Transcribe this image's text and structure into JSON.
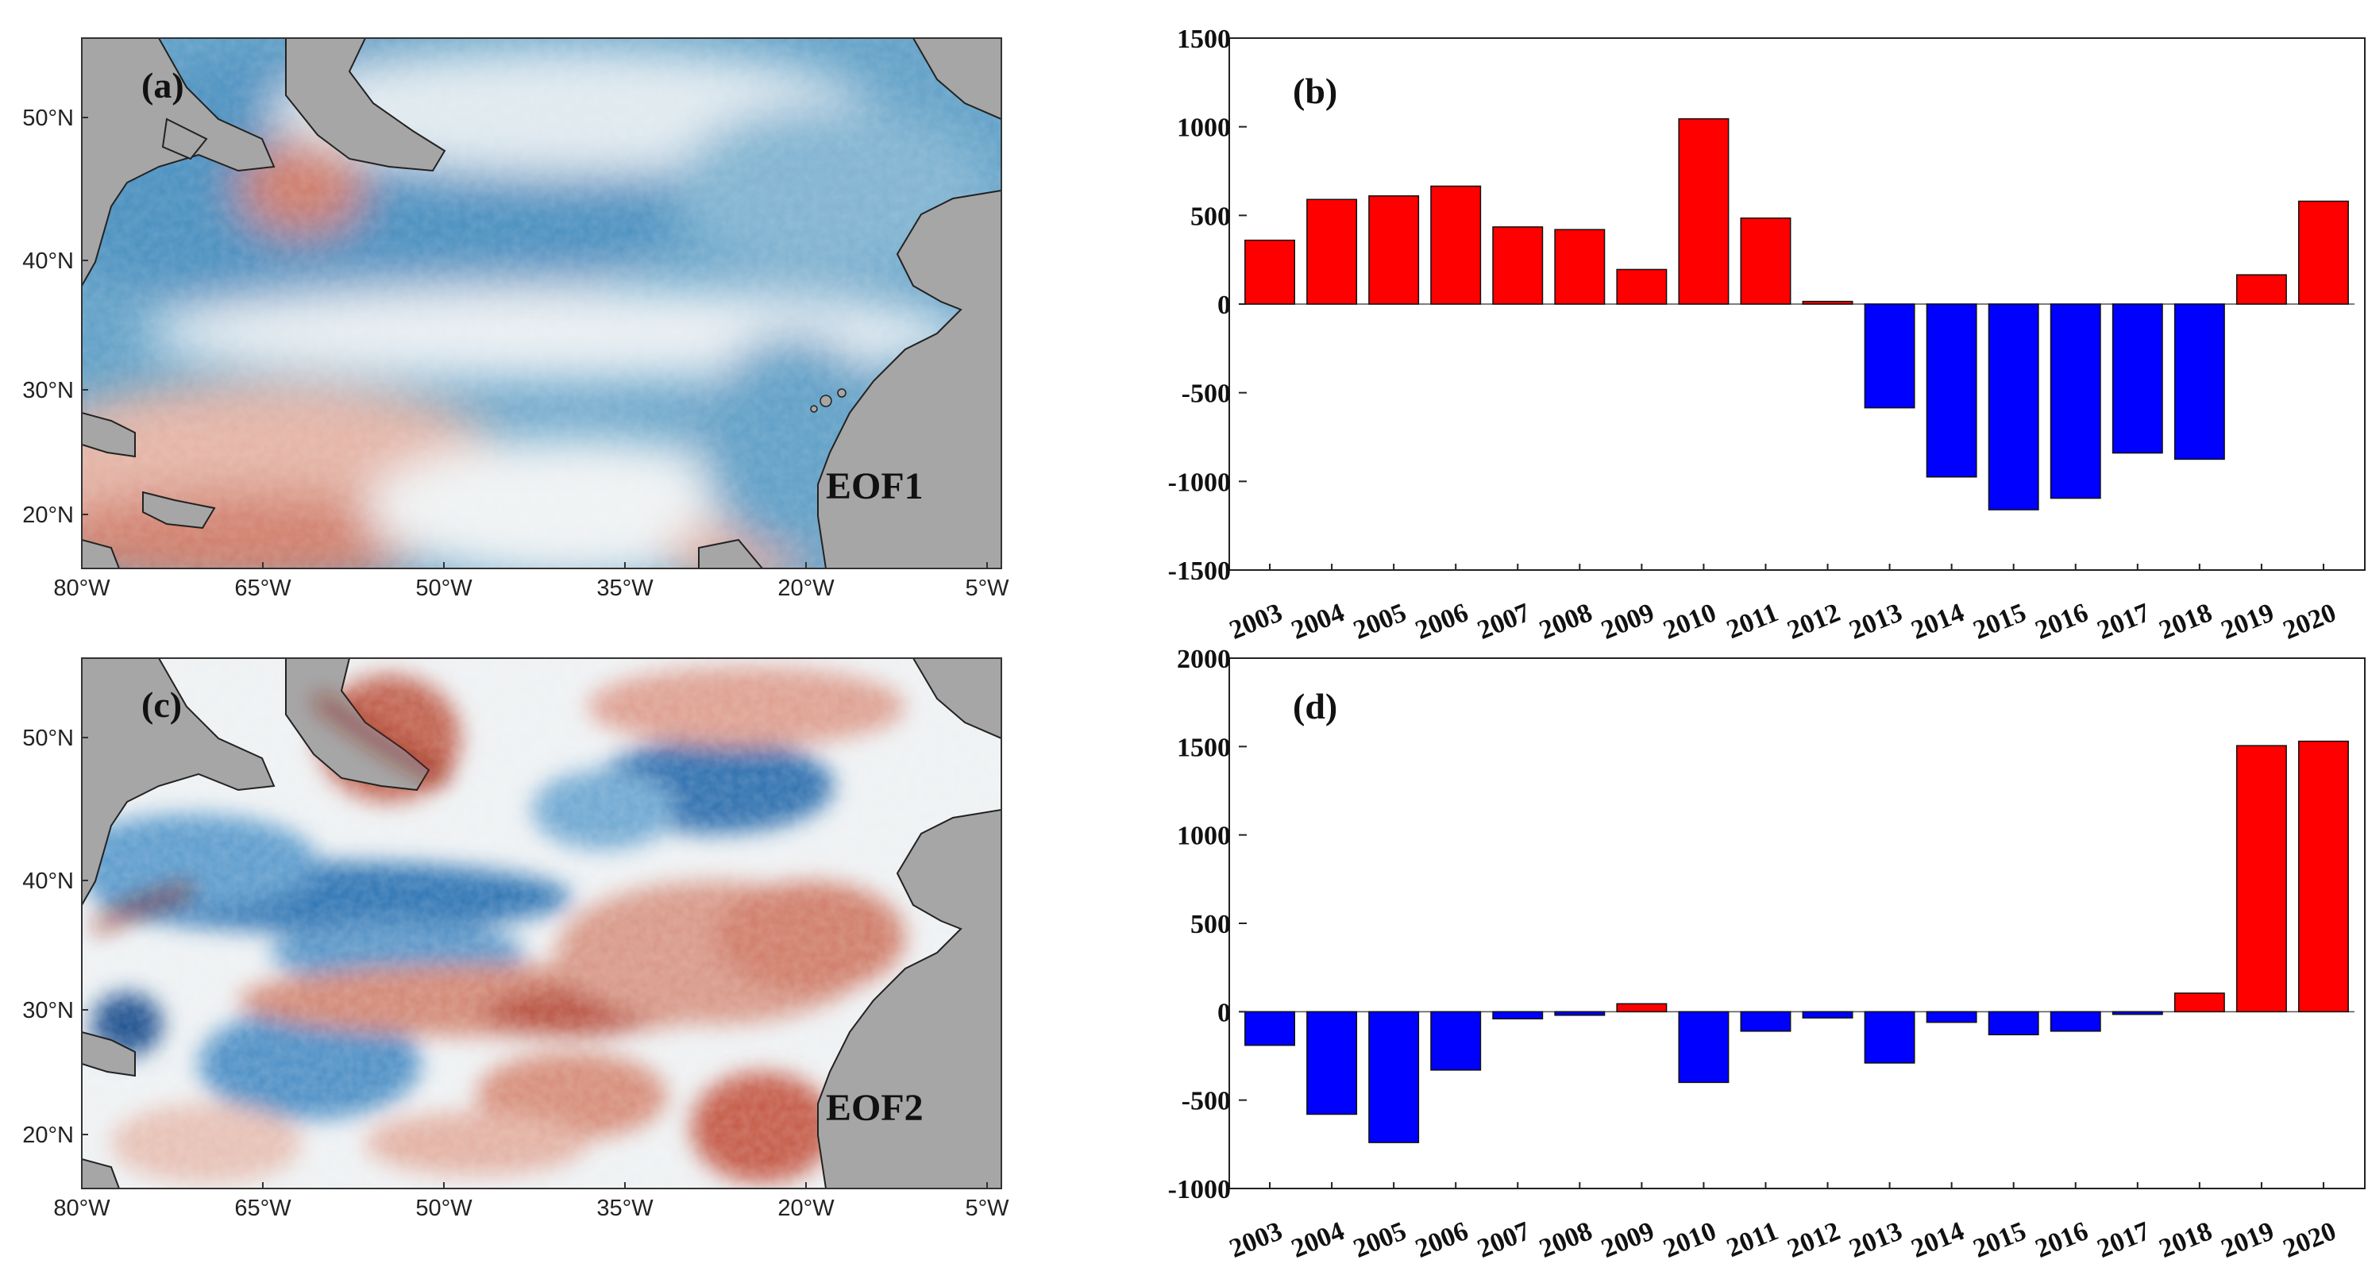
{
  "colors": {
    "positive": "#ff0000",
    "negative": "#0000ff",
    "land": "#a6a6a6",
    "warm": "#b93a2a",
    "cool": "#2d7fb5",
    "neutral": "#f2f2f2"
  },
  "maps": [
    {
      "panel_label": "(a)",
      "mode_label": "EOF1",
      "lon_ticks": [
        "80°W",
        "65°W",
        "50°W",
        "35°W",
        "20°W",
        "5°W"
      ],
      "lat_ticks": [
        "50°N",
        "40°N",
        "30°N",
        "20°N"
      ]
    },
    {
      "panel_label": "(c)",
      "mode_label": "EOF2",
      "lon_ticks": [
        "80°W",
        "65°W",
        "50°W",
        "35°W",
        "20°W",
        "5°W"
      ],
      "lat_ticks": [
        "50°N",
        "40°N",
        "30°N",
        "20°N"
      ]
    }
  ],
  "chart_data": [
    {
      "type": "bar",
      "panel_label": "(b)",
      "title": "",
      "xlabel": "",
      "ylabel": "",
      "ylim": [
        -1500,
        1500
      ],
      "yticks": [
        1500,
        1000,
        500,
        0,
        -500,
        -1000,
        -1500
      ],
      "categories": [
        "2003",
        "2004",
        "2005",
        "2006",
        "2007",
        "2008",
        "2009",
        "2010",
        "2011",
        "2012",
        "2013",
        "2014",
        "2015",
        "2016",
        "2017",
        "2018",
        "2019",
        "2020"
      ],
      "values": [
        360,
        590,
        610,
        665,
        435,
        420,
        195,
        1045,
        485,
        15,
        -585,
        -975,
        -1160,
        -1095,
        -840,
        -875,
        165,
        580
      ]
    },
    {
      "type": "bar",
      "panel_label": "(d)",
      "title": "",
      "xlabel": "",
      "ylabel": "",
      "ylim": [
        -1000,
        2000
      ],
      "yticks": [
        2000,
        1500,
        1000,
        500,
        0,
        -500,
        -1000
      ],
      "categories": [
        "2003",
        "2004",
        "2005",
        "2006",
        "2007",
        "2008",
        "2009",
        "2010",
        "2011",
        "2012",
        "2013",
        "2014",
        "2015",
        "2016",
        "2017",
        "2018",
        "2019",
        "2020"
      ],
      "values": [
        -190,
        -580,
        -740,
        -330,
        -40,
        -20,
        45,
        -400,
        -110,
        -35,
        -290,
        -60,
        -130,
        -110,
        -15,
        105,
        1505,
        1530
      ]
    }
  ]
}
